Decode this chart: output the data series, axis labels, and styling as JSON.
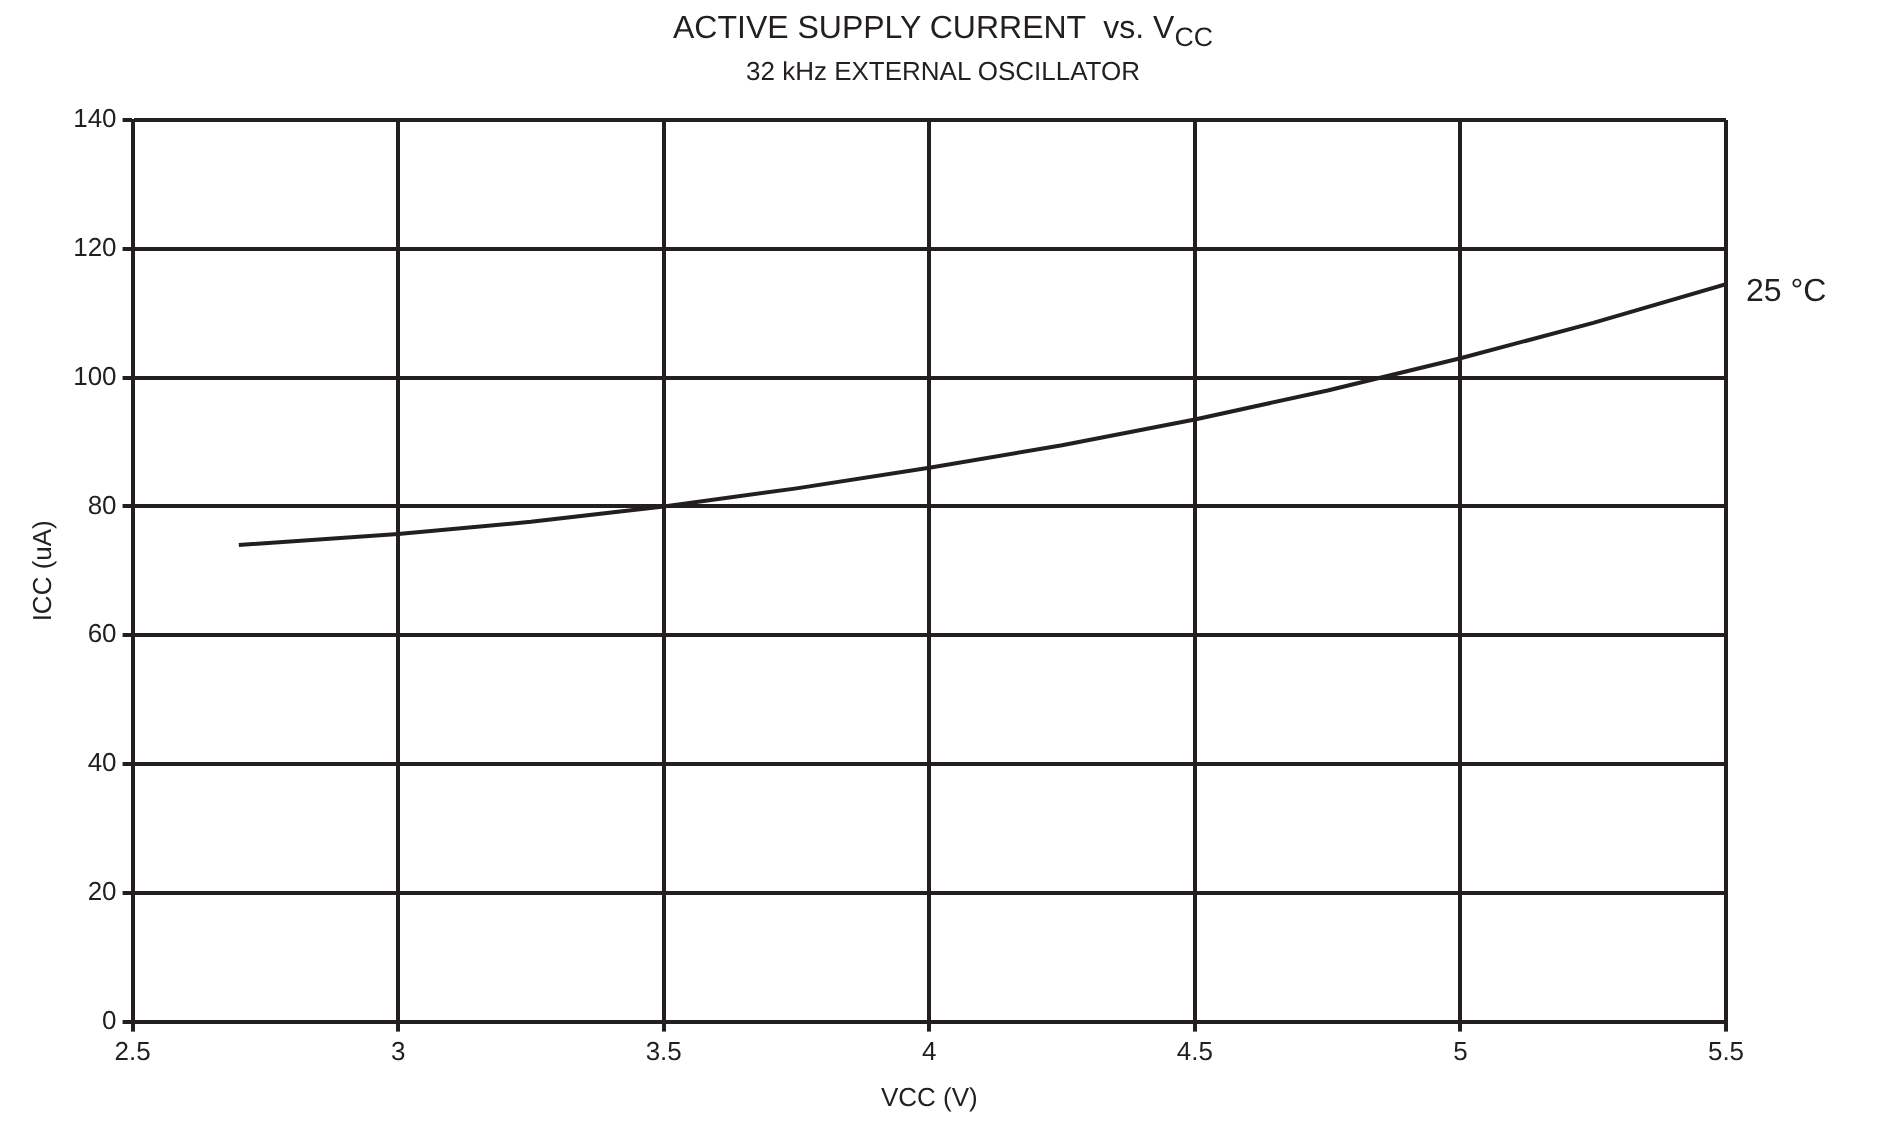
{
  "chart_data": {
    "type": "line",
    "title": "ACTIVE SUPPLY CURRENT  vs. V$_{CC}$",
    "subtitle": "32 kHz EXTERNAL OSCILLATOR",
    "xlabel": "VCC (V)",
    "ylabel": "ICC (uA)",
    "x": [
      2.7,
      3,
      3.25,
      3.5,
      3.75,
      4,
      4.25,
      4.5,
      4.75,
      5,
      5.25,
      5.5
    ],
    "series": [
      {
        "name": "25 °C",
        "color": "#231f20",
        "values": [
          74,
          75.7,
          77.6,
          80,
          82.8,
          86,
          89.5,
          93.5,
          98,
          103,
          108.5,
          114.5
        ]
      }
    ],
    "xlim": [
      2.5,
      5.5
    ],
    "xticks": [
      2.5,
      3,
      3.5,
      4,
      4.5,
      5,
      5.5
    ],
    "ylim": [
      0,
      140
    ],
    "yticks": [
      0,
      20,
      40,
      60,
      80,
      100,
      120,
      140
    ],
    "grid": true,
    "legend": false,
    "marker": "none",
    "line_style": "solid"
  }
}
